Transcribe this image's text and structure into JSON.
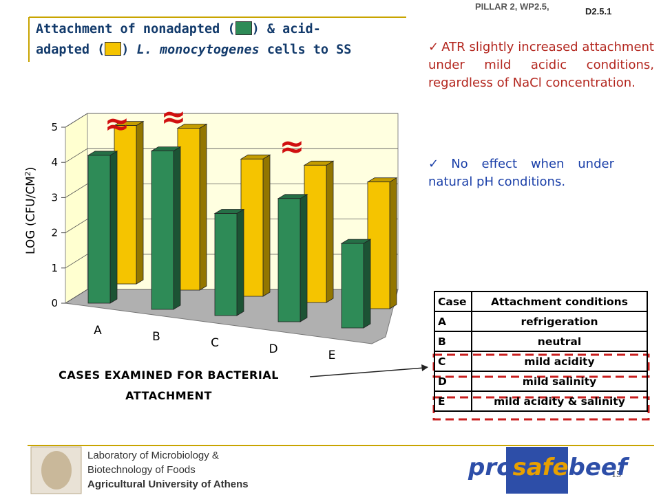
{
  "header": {
    "pillar": "PILLAR 2, WP2.5,",
    "deliverable": "D2.5.1"
  },
  "title": {
    "line1_start": "Attachment of nonadapted (",
    "line1_end": ") & acid-",
    "line2_start": "adapted (",
    "line2_species": "L. monocytogenes",
    "line2_end": "cells to SS"
  },
  "bullets": [
    "ATR slightly increased attachment under mild acidic conditions, regardless of NaCl concentration.",
    "No effect when under natural pH conditions."
  ],
  "chart_data": {
    "type": "bar3d",
    "categories": [
      "A",
      "B",
      "C",
      "D",
      "E"
    ],
    "series": [
      {
        "color": "#f5c400",
        "values": [
          4.5,
          4.6,
          3.9,
          3.9,
          3.6
        ]
      },
      {
        "color": "#2e8b57",
        "values": [
          4.2,
          4.5,
          2.9,
          3.5,
          2.4
        ]
      }
    ],
    "ylim": [
      0,
      5
    ],
    "yticks": [
      0,
      1,
      2,
      3,
      4,
      5
    ],
    "grid": true,
    "y_label": [
      "LOG (CFU/CM",
      "2",
      ")"
    ],
    "x_label": [
      "CASES EXAMINED FOR BACTERIAL",
      "ATTACHMENT"
    ],
    "annotations": [
      "≈",
      "≈",
      "≈"
    ]
  },
  "table": {
    "header": [
      "Case",
      "Attachment conditions"
    ],
    "rows": [
      [
        "A",
        "refrigeration"
      ],
      [
        "B",
        "neutral"
      ],
      [
        "C",
        "mild acidity"
      ],
      [
        "D",
        "mild salinity"
      ],
      [
        "E",
        "mild acidity & salinity"
      ]
    ]
  },
  "footer": {
    "lines": [
      "Laboratory of Microbiology &",
      "Biotechnology of Foods",
      "Agricultural University of Athens"
    ],
    "page": "15",
    "logo": [
      "pro",
      "safe",
      "beef"
    ]
  }
}
